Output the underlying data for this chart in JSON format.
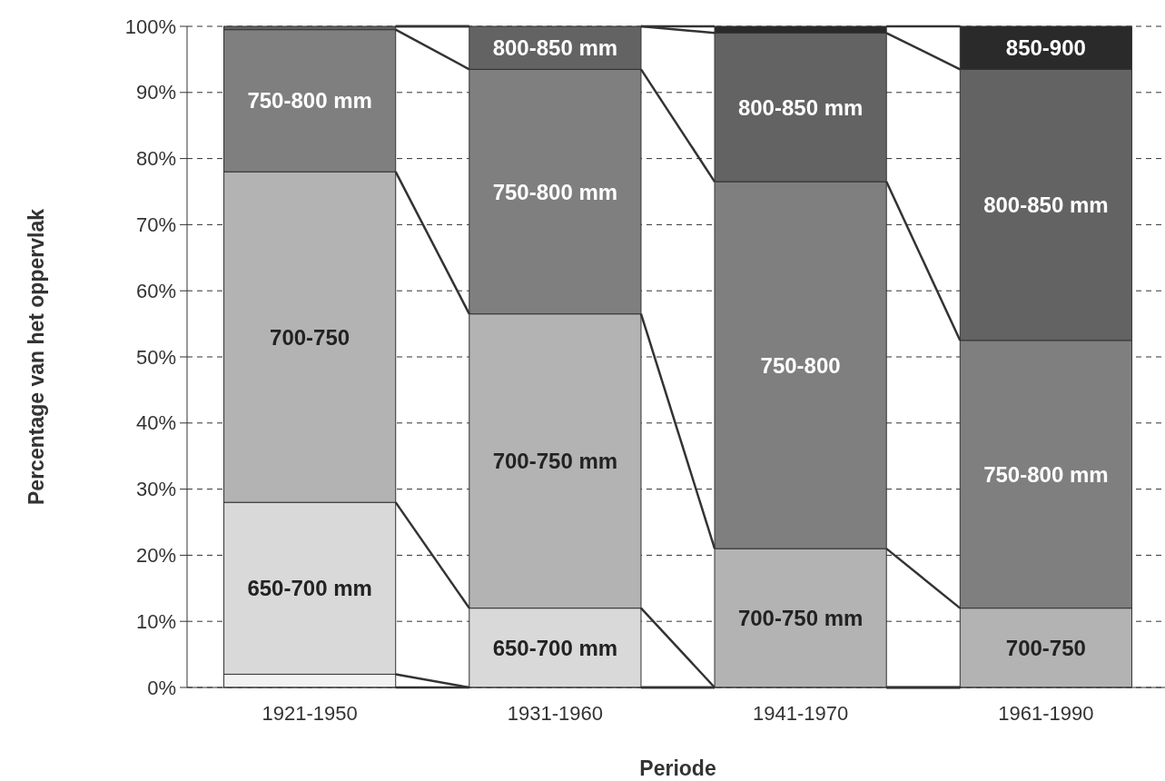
{
  "chart_data": {
    "type": "bar",
    "stacked": true,
    "xlabel": "Periode",
    "ylabel": "Percentage van het oppervlak",
    "categories": [
      "1921-1950",
      "1931-1960",
      "1941-1970",
      "1961-1990"
    ],
    "series": [
      {
        "color": "#f2f2f2",
        "values": [
          2,
          0,
          0,
          0
        ],
        "value_labels": [
          null,
          null,
          null,
          null
        ]
      },
      {
        "color": "#d9d9d9",
        "values": [
          26,
          12,
          0,
          0
        ],
        "value_labels": [
          "650-700 mm",
          "650-700 mm",
          null,
          null
        ]
      },
      {
        "color": "#b3b3b3",
        "values": [
          50,
          44.5,
          21,
          12
        ],
        "value_labels": [
          "700-750",
          "700-750 mm",
          "700-750 mm",
          "700-750"
        ]
      },
      {
        "color": "#7f7f7f",
        "values": [
          21.5,
          37,
          55.5,
          40.5
        ],
        "value_labels": [
          "750-800 mm",
          "750-800 mm",
          "750-800",
          "750-800 mm"
        ]
      },
      {
        "color": "#636363",
        "values": [
          0.5,
          6.5,
          22.5,
          41
        ],
        "value_labels": [
          null,
          "800-850 mm",
          "800-850 mm",
          "800-850 mm"
        ]
      },
      {
        "color": "#2a2a2a",
        "values": [
          0,
          0,
          1,
          6.5
        ],
        "value_labels": [
          null,
          null,
          null,
          "850-900"
        ]
      }
    ],
    "ylim": [
      0,
      100
    ],
    "yticks": [
      {
        "value": 0,
        "label": "0%"
      },
      {
        "value": 10,
        "label": "10%"
      },
      {
        "value": 20,
        "label": "20%"
      },
      {
        "value": 30,
        "label": "30%"
      },
      {
        "value": 40,
        "label": "40%"
      },
      {
        "value": 50,
        "label": "50%"
      },
      {
        "value": 60,
        "label": "60%"
      },
      {
        "value": 70,
        "label": "70%"
      },
      {
        "value": 80,
        "label": "80%"
      },
      {
        "value": 90,
        "label": "90%"
      },
      {
        "value": 100,
        "label": "100%"
      }
    ],
    "grid": "y"
  }
}
